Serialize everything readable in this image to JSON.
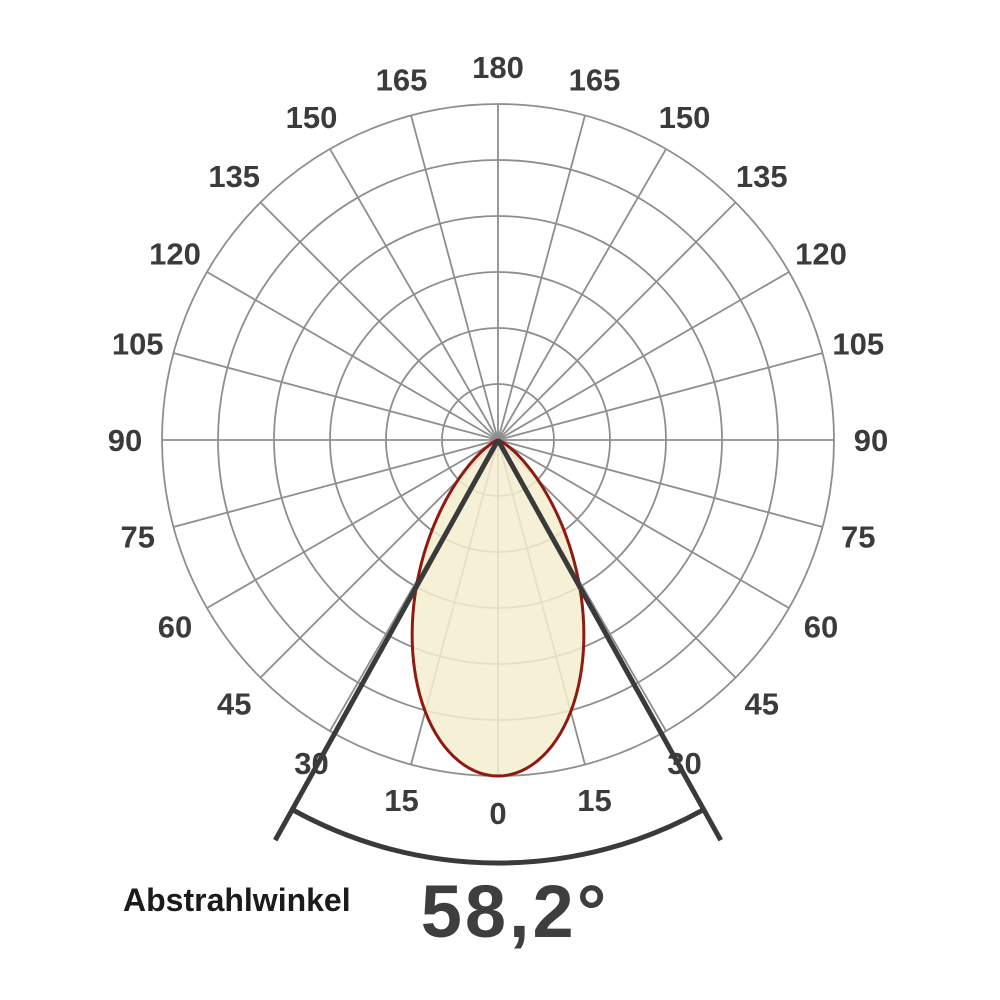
{
  "caption": {
    "label": "Abstrahlwinkel",
    "value": "58,2°"
  },
  "chart_data": {
    "type": "polar",
    "subtype": "luminous-intensity-distribution",
    "title": "Abstrahlwinkel 58,2°",
    "beam_angle_label": "Abstrahlwinkel",
    "beam_angle_value": "58,2°",
    "beam_angle_deg": 58.2,
    "half_angle_deg": 29.1,
    "angle_axis": {
      "min_deg": 0,
      "max_deg": 180,
      "tick_step_deg": 15,
      "mirrored_left_right": true,
      "zero_position": "bottom",
      "tick_labels": [
        "0",
        "15",
        "30",
        "45",
        "60",
        "75",
        "90",
        "105",
        "120",
        "135",
        "150",
        "165",
        "180"
      ]
    },
    "radial_axis": {
      "rings": 6,
      "normalized_max": 1.0,
      "value_labels_shown": false
    },
    "distribution_model": {
      "type": "cos_power",
      "exponent": 5.14,
      "peak_angle_deg": 0,
      "relative_intensity_at_half_angle": 0.5
    },
    "distribution_points": [
      [
        0,
        1.0
      ],
      [
        5,
        0.98
      ],
      [
        10,
        0.92
      ],
      [
        15,
        0.84
      ],
      [
        20,
        0.73
      ],
      [
        25,
        0.6
      ],
      [
        29.1,
        0.5
      ],
      [
        30,
        0.48
      ],
      [
        35,
        0.36
      ],
      [
        40,
        0.25
      ],
      [
        45,
        0.17
      ],
      [
        50,
        0.1
      ],
      [
        55,
        0.06
      ],
      [
        60,
        0.03
      ],
      [
        65,
        0.01
      ],
      [
        70,
        0.004
      ],
      [
        75,
        0.001
      ],
      [
        80,
        0.0
      ],
      [
        85,
        0.0
      ],
      [
        90,
        0.0
      ]
    ],
    "legend_shown": false,
    "grid_on": true,
    "colors": {
      "background": "#ffffff",
      "grid": "#8e8e8e",
      "curve_stroke": "#8e1a12",
      "curve_fill": "#f3edcf",
      "beam_marker": "#3a3a3a",
      "tick_label": "#3b3b3d"
    }
  }
}
